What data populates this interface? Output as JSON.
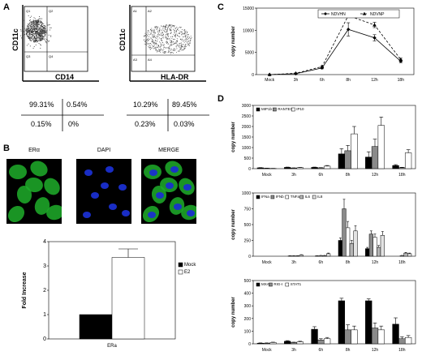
{
  "panels": {
    "A": {
      "label": "A",
      "left": {
        "y_axis": "CD11c",
        "x_axis": "CD14",
        "quad_labels": [
          "Q1",
          "Q2",
          "Q3",
          "Q4"
        ],
        "percents": [
          "99.31%",
          "0.54%",
          "0.15%",
          "0%"
        ]
      },
      "right": {
        "y_axis": "CD11c",
        "x_axis": "HLA-DR",
        "quad_labels": [
          "A1",
          "A2",
          "A3",
          "A4"
        ],
        "percents": [
          "10.29%",
          "89.45%",
          "0.23%",
          "0.03%"
        ]
      }
    },
    "B": {
      "label": "B",
      "micrograph_labels": [
        "ERα",
        "DAPI",
        "MERGE"
      ],
      "fluorescence_colors": {
        "green": "#1fae2a",
        "blue": "#1a2fd0"
      }
    },
    "C": {
      "label": "C"
    },
    "D": {
      "label": "D"
    }
  },
  "chart_data": [
    {
      "id": "C",
      "type": "line",
      "categories": [
        "Mock",
        "3h",
        "6h",
        "8h",
        "12h",
        "18h"
      ],
      "series": [
        {
          "name": "NDVHN",
          "values": [
            0,
            200,
            1500,
            10200,
            8300,
            3000
          ],
          "errors": [
            0,
            100,
            200,
            1500,
            700,
            300
          ],
          "style": "solid",
          "marker": "diamond"
        },
        {
          "name": "NDVNP",
          "values": [
            0,
            300,
            1800,
            13300,
            11200,
            3400
          ],
          "errors": [
            0,
            100,
            200,
            400,
            600,
            300
          ],
          "style": "dashed",
          "marker": "triangle"
        }
      ],
      "ylabel": "copy number",
      "ylim": [
        0,
        15000
      ],
      "yticks": [
        0,
        5000,
        10000,
        15000
      ],
      "legend": "top"
    },
    {
      "id": "D1",
      "type": "bar",
      "categories": [
        "Mock",
        "3h",
        "6h",
        "8h",
        "12h",
        "18h"
      ],
      "series": [
        {
          "name": "MIP1b",
          "color": "#000000",
          "values": [
            40,
            60,
            60,
            700,
            550,
            150
          ],
          "errors": [
            10,
            15,
            15,
            250,
            250,
            40
          ]
        },
        {
          "name": "RANTES",
          "color": "#8a8a8a",
          "values": [
            20,
            30,
            40,
            850,
            1050,
            50
          ],
          "errors": [
            5,
            10,
            10,
            250,
            350,
            15
          ]
        },
        {
          "name": "IP10",
          "color": "#ffffff",
          "values": [
            10,
            50,
            120,
            1650,
            2050,
            750
          ],
          "errors": [
            5,
            10,
            30,
            350,
            400,
            150
          ]
        }
      ],
      "ylabel": "copy number",
      "ylim": [
        0,
        3000
      ],
      "yticks": [
        0,
        500,
        1000,
        1500,
        2000,
        2500,
        3000
      ],
      "legend": "top-left"
    },
    {
      "id": "D2",
      "type": "bar",
      "categories": [
        "Mock",
        "3h",
        "6h",
        "8h",
        "12h",
        "18h"
      ],
      "series": [
        {
          "name": "IFNa",
          "color": "#000000",
          "values": [
            0,
            0,
            0,
            250,
            120,
            0
          ],
          "errors": [
            0,
            0,
            0,
            40,
            20,
            0
          ]
        },
        {
          "name": "IFNb",
          "color": "#8a8a8a",
          "values": [
            0,
            5,
            5,
            750,
            350,
            0
          ],
          "errors": [
            0,
            2,
            2,
            150,
            50,
            0
          ]
        },
        {
          "name": "TNFa",
          "color": "#ffffff",
          "values": [
            0,
            5,
            10,
            450,
            300,
            10
          ],
          "errors": [
            0,
            2,
            3,
            100,
            50,
            3
          ]
        },
        {
          "name": "IL6",
          "color": "#b5b5b5",
          "values": [
            0,
            5,
            10,
            200,
            140,
            50
          ],
          "errors": [
            0,
            2,
            3,
            50,
            30,
            10
          ]
        },
        {
          "name": "IL8",
          "color": "#e3e3e3",
          "values": [
            0,
            20,
            40,
            400,
            330,
            40
          ],
          "errors": [
            0,
            5,
            10,
            80,
            60,
            10
          ]
        }
      ],
      "ylabel": "copy number",
      "ylim": [
        0,
        1000
      ],
      "yticks": [
        0,
        250,
        500,
        750,
        1000
      ],
      "legend": "top-left"
    },
    {
      "id": "D3",
      "type": "bar",
      "categories": [
        "Mock",
        "3h",
        "6h",
        "8h",
        "12h",
        "18h"
      ],
      "series": [
        {
          "name": "MXA",
          "color": "#000000",
          "values": [
            5,
            20,
            115,
            340,
            340,
            155
          ],
          "errors": [
            2,
            5,
            20,
            20,
            15,
            50
          ]
        },
        {
          "name": "RIG-I",
          "color": "#8a8a8a",
          "values": [
            5,
            10,
            30,
            110,
            125,
            40
          ],
          "errors": [
            2,
            3,
            10,
            40,
            40,
            15
          ]
        },
        {
          "name": "STAT1",
          "color": "#ffffff",
          "values": [
            10,
            15,
            40,
            110,
            110,
            50
          ],
          "errors": [
            3,
            5,
            10,
            30,
            30,
            15
          ]
        }
      ],
      "ylabel": "copy number",
      "ylim": [
        0,
        500
      ],
      "yticks": [
        0,
        100,
        200,
        300,
        400,
        500
      ],
      "legend": "top-left"
    },
    {
      "id": "B",
      "type": "bar",
      "categories": [
        "ERa"
      ],
      "series": [
        {
          "name": "Mock",
          "color": "#000000",
          "values": [
            1.0
          ],
          "errors": [
            0
          ]
        },
        {
          "name": "E2",
          "color": "#ffffff",
          "values": [
            3.35
          ],
          "errors": [
            0.35
          ]
        }
      ],
      "ylabel": "Fold Increase",
      "ylim": [
        0,
        4
      ],
      "yticks": [
        0,
        1,
        2,
        3,
        4
      ],
      "legend": "right"
    }
  ]
}
